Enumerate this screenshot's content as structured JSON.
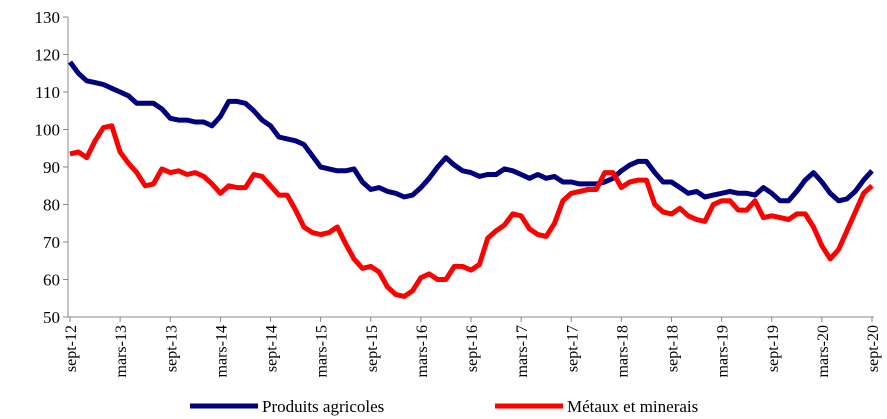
{
  "chart_data": {
    "type": "line",
    "categories": [
      "sept-12",
      null,
      null,
      null,
      null,
      null,
      "mars-13",
      null,
      null,
      null,
      null,
      null,
      "sept-13",
      null,
      null,
      null,
      null,
      null,
      "mars-14",
      null,
      null,
      null,
      null,
      null,
      "sept-14",
      null,
      null,
      null,
      null,
      null,
      "mars-15",
      null,
      null,
      null,
      null,
      null,
      "sept-15",
      null,
      null,
      null,
      null,
      null,
      "mars-16",
      null,
      null,
      null,
      null,
      null,
      "sept-16",
      null,
      null,
      null,
      null,
      null,
      "mars-17",
      null,
      null,
      null,
      null,
      null,
      "sept-17",
      null,
      null,
      null,
      null,
      null,
      "mars-18",
      null,
      null,
      null,
      null,
      null,
      "sept-18",
      null,
      null,
      null,
      null,
      null,
      "mars-19",
      null,
      null,
      null,
      null,
      null,
      "sept-19",
      null,
      null,
      null,
      null,
      null,
      "mars-20",
      null,
      null,
      null,
      null,
      null,
      "sept-20"
    ],
    "series": [
      {
        "name": "Produits agricoles",
        "color": "#00007f",
        "values": [
          118,
          115,
          113,
          112.5,
          112,
          111,
          110,
          109,
          107,
          107,
          107,
          105.5,
          103,
          102.5,
          102.5,
          102,
          102,
          101,
          103.5,
          107.5,
          107.5,
          107,
          105,
          102.5,
          101,
          98,
          97.5,
          97,
          96,
          93,
          90,
          89.5,
          89,
          89,
          89.5,
          86,
          84,
          84.5,
          83.5,
          83,
          82,
          82.5,
          84.5,
          87,
          90,
          92.5,
          90.5,
          89,
          88.5,
          87.5,
          88,
          88,
          89.5,
          89,
          88,
          87,
          88,
          87,
          87.5,
          86,
          86,
          85.5,
          85.5,
          85.5,
          86,
          87,
          89,
          90.5,
          91.5,
          91.5,
          88.5,
          86,
          86,
          84.5,
          83,
          83.5,
          82,
          82.5,
          83,
          83.5,
          83,
          83,
          82.5,
          84.5,
          83,
          81,
          81,
          83.5,
          86.5,
          88.5,
          86,
          83,
          81,
          81.5,
          83.5,
          86.5,
          89
        ]
      },
      {
        "name": "Métaux et minerais",
        "color": "#ff0000",
        "values": [
          93.5,
          94,
          92.5,
          97,
          100.5,
          101,
          94,
          91,
          88.5,
          85,
          85.5,
          89.5,
          88.5,
          89,
          88,
          88.5,
          87.5,
          85.5,
          83,
          85,
          84.5,
          84.5,
          88,
          87.5,
          85,
          82.5,
          82.5,
          78.5,
          74,
          72.5,
          72,
          72.5,
          74,
          69.5,
          65.5,
          63,
          63.5,
          62,
          58,
          56,
          55.5,
          57,
          60.5,
          61.5,
          60,
          60,
          63.5,
          63.5,
          62.5,
          64,
          71,
          73,
          74.5,
          77.5,
          77,
          73.5,
          72,
          71.5,
          75,
          81,
          83,
          83.5,
          84,
          84,
          88.5,
          88.5,
          84.5,
          86,
          86.5,
          86.5,
          80,
          78,
          77.5,
          79,
          77,
          76,
          75.5,
          80,
          81,
          81,
          78.5,
          78.5,
          81,
          76.5,
          77,
          76.5,
          76,
          77.5,
          77.5,
          74,
          69,
          65.5,
          68,
          73,
          78,
          83,
          85
        ]
      }
    ],
    "ylim": [
      50,
      130
    ],
    "yticks": [
      50,
      60,
      70,
      80,
      90,
      100,
      110,
      120,
      130
    ]
  }
}
